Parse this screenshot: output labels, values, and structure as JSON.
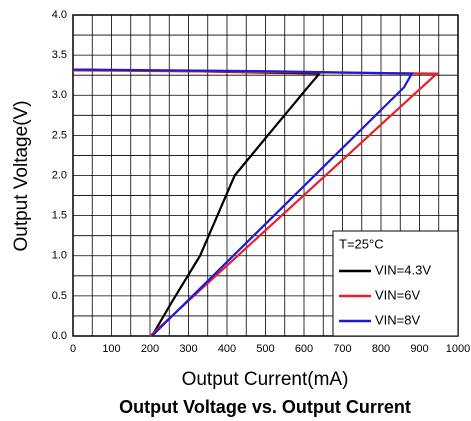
{
  "chart_data": {
    "type": "line",
    "title": "Output Voltage vs. Output Current",
    "x_label": "Output Current(mA)",
    "y_label": "Output Voltage(V)",
    "legend_title": "T=25°C",
    "legend": "lower right",
    "grid": true,
    "minor_grid": true,
    "xlim": [
      0,
      1000
    ],
    "xticks": [
      0,
      100,
      200,
      300,
      400,
      500,
      600,
      700,
      800,
      900,
      1000
    ],
    "ylim": [
      0,
      4
    ],
    "yticks": [
      {
        "value": 0,
        "label": "0.0"
      },
      0.5,
      {
        "value": 1,
        "label": "1.0"
      },
      1.5,
      {
        "value": 2,
        "label": "2.0"
      },
      2.5,
      {
        "value": 3,
        "label": "3.0"
      },
      3.5,
      {
        "value": 4,
        "label": "4.0"
      }
    ],
    "series": [
      {
        "name": "VIN=4.3V",
        "color": "#000000",
        "x": [
          0,
          300,
          640,
          610,
          506,
          420,
          330,
          260,
          205
        ],
        "values": [
          3.32,
          3.3,
          3.27,
          3.1,
          2.5,
          2.0,
          1.0,
          0.45,
          0
        ]
      },
      {
        "name": "VIN=6V",
        "color": "#e8202a",
        "x": [
          0,
          500,
          945,
          200
        ],
        "values": [
          3.31,
          3.29,
          3.27,
          0
        ]
      },
      {
        "name": "VIN=8V",
        "color": "#1a1ad8",
        "x": [
          0,
          500,
          880,
          860,
          205
        ],
        "values": [
          3.32,
          3.3,
          3.27,
          3.1,
          0
        ]
      }
    ]
  }
}
